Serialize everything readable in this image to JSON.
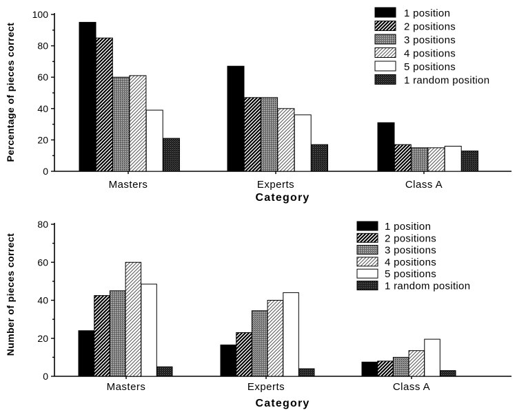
{
  "chart_data": [
    {
      "type": "bar",
      "ylabel": "Percentage of pieces correct",
      "xlabel": "Category",
      "categories": [
        "Masters",
        "Experts",
        "Class A"
      ],
      "ylim": [
        0,
        100
      ],
      "yticks": [
        0,
        20,
        40,
        60,
        80,
        100
      ],
      "legend_position": "top-right",
      "series": [
        {
          "name": "1 position",
          "pattern": "solid-black",
          "values": [
            95,
            67,
            31
          ]
        },
        {
          "name": "2 positions",
          "pattern": "diagonal-dark",
          "values": [
            85,
            47,
            17
          ]
        },
        {
          "name": "3 positions",
          "pattern": "stipple-gray",
          "values": [
            60,
            47,
            15
          ]
        },
        {
          "name": "4 positions",
          "pattern": "diagonal-light",
          "values": [
            61,
            40,
            15
          ]
        },
        {
          "name": "5 positions",
          "pattern": "white",
          "values": [
            39,
            36,
            16
          ]
        },
        {
          "name": "1 random position",
          "pattern": "stipple-dark",
          "values": [
            21,
            17,
            13
          ]
        }
      ]
    },
    {
      "type": "bar",
      "ylabel": "Number of pieces correct",
      "xlabel": "Category",
      "categories": [
        "Masters",
        "Experts",
        "Class A"
      ],
      "ylim": [
        0,
        80
      ],
      "yticks": [
        0,
        20,
        40,
        60,
        80
      ],
      "legend_position": "top-right",
      "series": [
        {
          "name": "1 position",
          "pattern": "solid-black",
          "values": [
            24,
            16.5,
            7.5
          ]
        },
        {
          "name": "2 positions",
          "pattern": "diagonal-dark",
          "values": [
            42.5,
            23,
            8
          ]
        },
        {
          "name": "3 positions",
          "pattern": "stipple-gray",
          "values": [
            45,
            34.5,
            10
          ]
        },
        {
          "name": "4 positions",
          "pattern": "diagonal-light",
          "values": [
            60,
            40,
            13.5
          ]
        },
        {
          "name": "5 positions",
          "pattern": "white",
          "values": [
            48.5,
            44,
            19.5
          ]
        },
        {
          "name": "1 random position",
          "pattern": "stipple-dark",
          "values": [
            5,
            4,
            3
          ]
        }
      ]
    }
  ]
}
